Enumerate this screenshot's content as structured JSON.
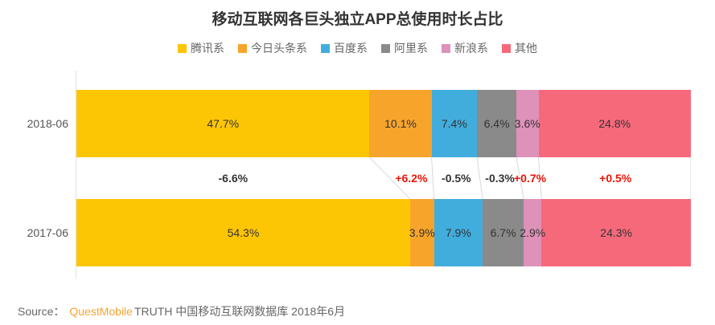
{
  "chart_data": {
    "type": "bar",
    "orientation": "horizontal-stacked",
    "title": "移动互联网各巨头独立APP总使用时长占比",
    "categories": [
      "2018-06",
      "2017-06"
    ],
    "series": [
      {
        "name": "腾讯系",
        "color": "#fdc604",
        "values": [
          47.7,
          54.3
        ]
      },
      {
        "name": "今日头条系",
        "color": "#f7a42b",
        "values": [
          10.1,
          3.9
        ]
      },
      {
        "name": "百度系",
        "color": "#41addd",
        "values": [
          7.4,
          7.9
        ]
      },
      {
        "name": "阿里系",
        "color": "#8a8a8a",
        "values": [
          6.4,
          6.7
        ]
      },
      {
        "name": "新浪系",
        "color": "#de91b9",
        "values": [
          3.6,
          2.9
        ]
      },
      {
        "name": "其他",
        "color": "#f6697b",
        "values": [
          24.8,
          24.3
        ]
      }
    ],
    "deltas": [
      "-6.6%",
      "+6.2%",
      "-0.5%",
      "-0.3%",
      "+0.7%",
      "+0.5%"
    ],
    "value_suffix": "%",
    "xlim": [
      0,
      100
    ],
    "legend_position": "top",
    "grid": false
  },
  "colors": {
    "delta_positive": "#ea1507",
    "delta_negative": "#333333",
    "segment_label": "#333333",
    "connector_line": "#d8d8d8",
    "axis_line": "#e3e3e3"
  },
  "source": {
    "prefix": "Source：",
    "brand": "QuestMobile",
    "rest": "TRUTH 中国移动互联网数据库 2018年6月"
  }
}
